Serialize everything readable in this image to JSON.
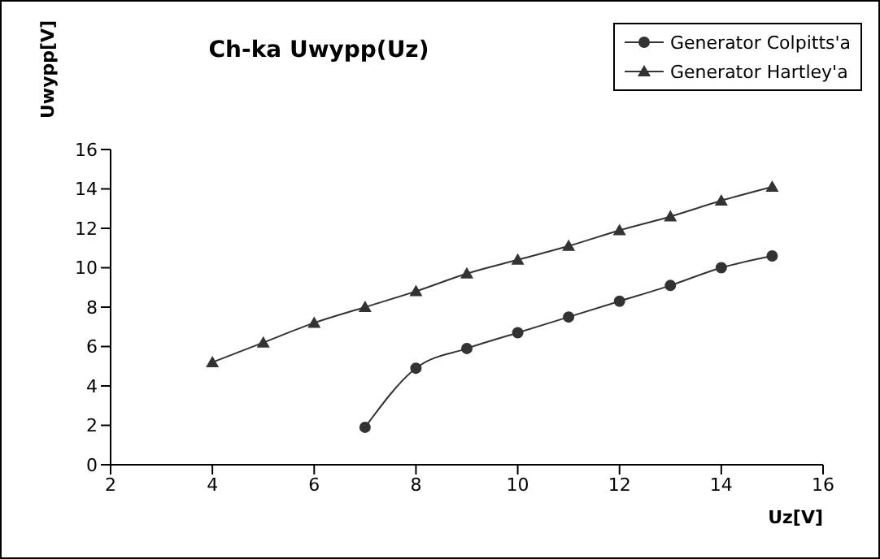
{
  "chart_data": {
    "type": "line",
    "title": "Ch-ka Uwypp(Uz)",
    "xlabel": "Uz[V]",
    "ylabel": "Uwypp[V]",
    "xlim": [
      2,
      16
    ],
    "xticks": [
      2,
      4,
      6,
      8,
      10,
      12,
      14,
      16
    ],
    "ylim": [
      0,
      16
    ],
    "yticks": [
      0,
      2,
      4,
      6,
      8,
      10,
      12,
      14,
      16
    ],
    "grid": false,
    "legend": "top right",
    "series": [
      {
        "name": "Generator Colpitts'a",
        "color": "#333333",
        "marker": "circle",
        "x": [
          7,
          8,
          9,
          10,
          11,
          12,
          13,
          14,
          15
        ],
        "values": [
          1.9,
          4.9,
          5.9,
          6.7,
          7.5,
          8.3,
          9.1,
          10.0,
          10.6
        ]
      },
      {
        "name": "Generator Hartley'a",
        "color": "#333333",
        "marker": "triangle",
        "x": [
          4,
          5,
          6,
          7,
          8,
          9,
          10,
          11,
          12,
          13,
          14,
          15
        ],
        "values": [
          5.2,
          6.2,
          7.2,
          8.0,
          8.8,
          9.7,
          10.4,
          11.1,
          11.9,
          12.6,
          13.4,
          14.1
        ]
      }
    ]
  }
}
